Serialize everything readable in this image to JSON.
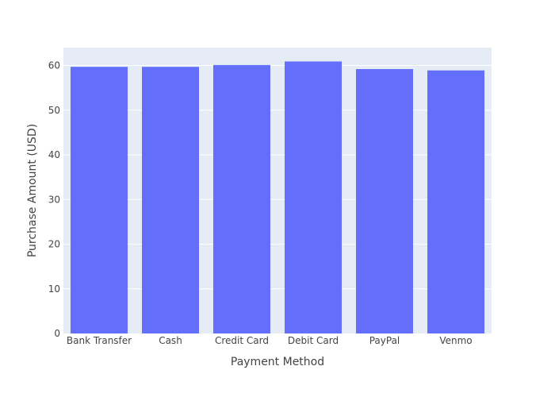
{
  "colors": {
    "plot_bg": "#e5ecf6",
    "grid": "#ffffff",
    "bar": "#636efa",
    "text": "#444444"
  },
  "chart_data": {
    "type": "bar",
    "title": "",
    "xlabel": "Payment Method",
    "ylabel": "Purchase Amount (USD)",
    "categories": [
      "Bank Transfer",
      "Cash",
      "Credit Card",
      "Debit Card",
      "PayPal",
      "Venmo"
    ],
    "values": [
      59.7,
      59.7,
      60.1,
      60.9,
      59.2,
      58.9
    ],
    "ylim": [
      0,
      64
    ],
    "yticks": [
      "0",
      "10",
      "20",
      "30",
      "40",
      "50",
      "60"
    ],
    "grid": true
  }
}
